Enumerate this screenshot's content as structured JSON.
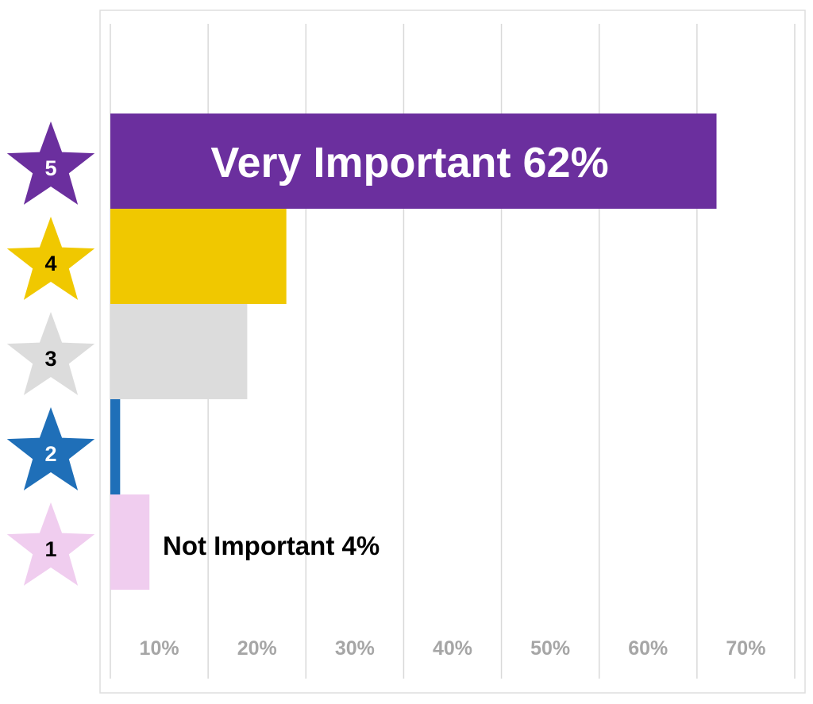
{
  "chart_data": {
    "type": "bar",
    "orientation": "horizontal",
    "categories": [
      "5",
      "4",
      "3",
      "2",
      "1"
    ],
    "values": [
      62,
      18,
      14,
      1,
      4
    ],
    "colors": [
      "#6b2f9e",
      "#f0c800",
      "#dcdcdc",
      "#1f6fb8",
      "#f0cdef"
    ],
    "label_colors": [
      "#ffffff",
      "#000000",
      "#000000",
      "#ffffff",
      "#000000"
    ],
    "category_marker": "star",
    "annotations": [
      {
        "category": "5",
        "text": "Very Important 62%",
        "color": "#ffffff"
      },
      {
        "category": "1",
        "text": "Not Important 4%",
        "color": "#000000"
      }
    ],
    "xlim": [
      0,
      70
    ],
    "x_ticks": [
      10,
      20,
      30,
      40,
      50,
      60,
      70
    ],
    "x_tick_labels": [
      "10%",
      "20%",
      "30%",
      "40%",
      "50%",
      "60%",
      "70%"
    ],
    "grid": "vertical",
    "title": "",
    "xlabel": "",
    "ylabel": ""
  }
}
